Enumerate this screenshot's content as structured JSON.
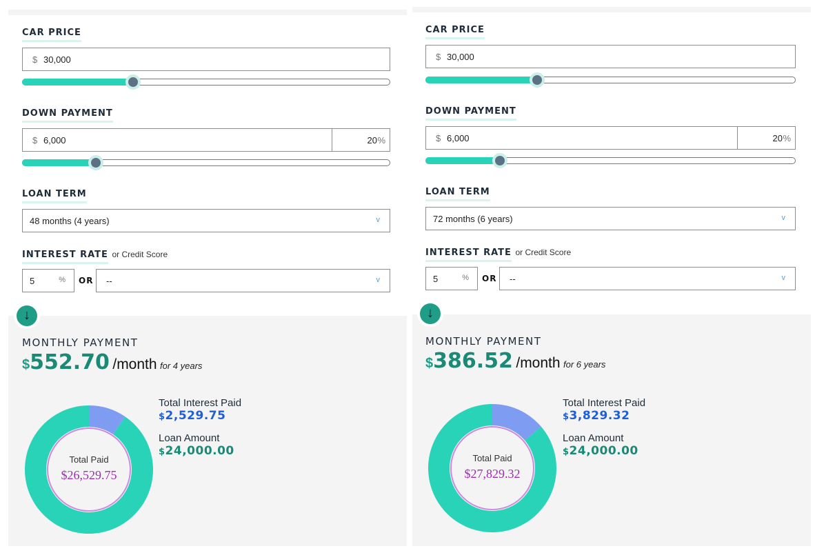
{
  "colors": {
    "teal": "#29d3b8",
    "interest": "#7d9cf2",
    "total_paid": "#9b2fae",
    "interest_text": "#1e5fd6",
    "loan_text": "#1a8a76"
  },
  "icons": {
    "scroll": "arrow-down-icon",
    "dropdown": "chevron-down-icon"
  },
  "panels": [
    {
      "car_price": {
        "label": "CAR PRICE",
        "currency": "$",
        "value": "30,000",
        "slider_level": 0.3
      },
      "down_payment": {
        "label": "DOWN PAYMENT",
        "currency": "$",
        "value": "6,000",
        "percent": "20",
        "percent_symbol": "%",
        "slider_level": 0.2
      },
      "loan_term": {
        "label": "LOAN TERM",
        "selected": "48 months (4 years)",
        "chevron": "v"
      },
      "interest": {
        "label": "INTEREST RATE",
        "sublabel": "or Credit Score",
        "rate": "5",
        "rate_symbol": "%",
        "or": "OR",
        "credit_score": "--",
        "chevron": "v"
      },
      "scroll_arrow": "↓",
      "monthly": {
        "label": "MONTHLY PAYMENT",
        "currency": "$",
        "amount": "552.70",
        "per": "/month",
        "for": "for 4 years"
      },
      "chart_data": {
        "type": "pie",
        "center_label": "Total Paid",
        "center_value": "$26,529.75",
        "slices": [
          {
            "name": "Total Interest Paid",
            "value": 2529.75
          },
          {
            "name": "Loan Amount",
            "value": 24000.0
          }
        ]
      },
      "totals": {
        "interest_label": "Total Interest Paid",
        "interest_currency": "$",
        "interest_value": "2,529.75",
        "loan_label": "Loan Amount",
        "loan_currency": "$",
        "loan_value": "24,000.00"
      }
    },
    {
      "car_price": {
        "label": "CAR PRICE",
        "currency": "$",
        "value": "30,000",
        "slider_level": 0.3
      },
      "down_payment": {
        "label": "DOWN PAYMENT",
        "currency": "$",
        "value": "6,000",
        "percent": "20",
        "percent_symbol": "%",
        "slider_level": 0.2
      },
      "loan_term": {
        "label": "LOAN TERM",
        "selected": "72 months (6 years)",
        "chevron": "v"
      },
      "interest": {
        "label": "INTEREST RATE",
        "sublabel": "or Credit Score",
        "rate": "5",
        "rate_symbol": "%",
        "or": "OR",
        "credit_score": "--",
        "chevron": "v"
      },
      "scroll_arrow": "↓",
      "monthly": {
        "label": "MONTHLY PAYMENT",
        "currency": "$",
        "amount": "386.52",
        "per": "/month",
        "for": "for 6 years"
      },
      "chart_data": {
        "type": "pie",
        "center_label": "Total Paid",
        "center_value": "$27,829.32",
        "slices": [
          {
            "name": "Total Interest Paid",
            "value": 3829.32
          },
          {
            "name": "Loan Amount",
            "value": 24000.0
          }
        ]
      },
      "totals": {
        "interest_label": "Total Interest Paid",
        "interest_currency": "$",
        "interest_value": "3,829.32",
        "loan_label": "Loan Amount",
        "loan_currency": "$",
        "loan_value": "24,000.00"
      }
    }
  ]
}
